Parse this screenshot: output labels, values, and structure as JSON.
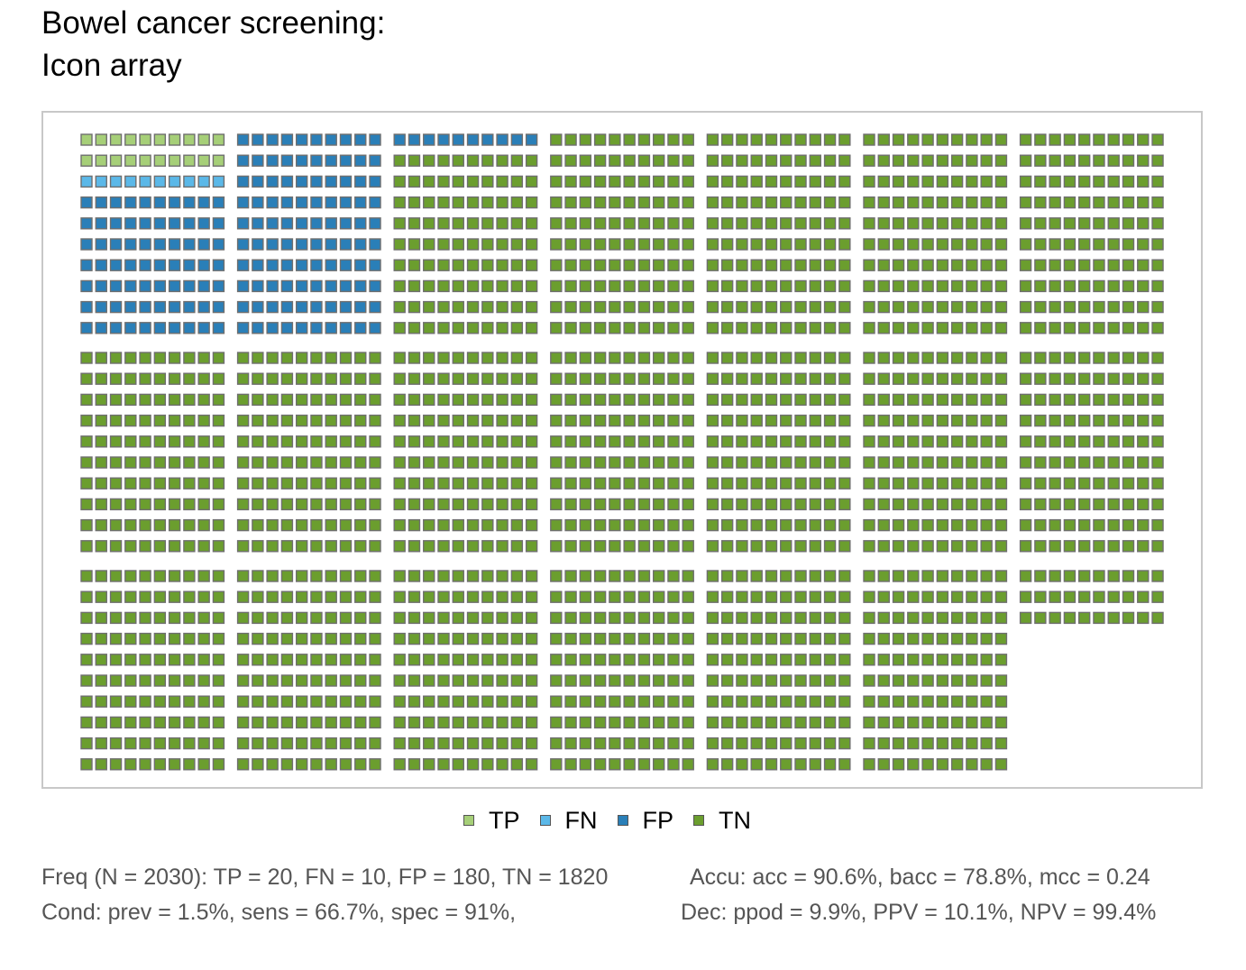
{
  "title": {
    "line1": "Bowel cancer screening:",
    "line2": "Icon array"
  },
  "chart_data": {
    "type": "icon_array",
    "total": 2030,
    "categories": [
      {
        "key": "TP",
        "label": "TP",
        "count": 20,
        "color": "#a6cf78"
      },
      {
        "key": "FN",
        "label": "FN",
        "count": 10,
        "color": "#5bb8e8"
      },
      {
        "key": "FP",
        "label": "FP",
        "count": 180,
        "color": "#2a7fb8"
      },
      {
        "key": "TN",
        "label": "TN",
        "count": 1820,
        "color": "#6b9e2e"
      }
    ],
    "grid": {
      "block_cols": 7,
      "block_rows": 3,
      "icons_per_block_row": 10,
      "icon_rows_per_block": 10
    },
    "legend_position": "bottom"
  },
  "legend": [
    {
      "label": "TP",
      "color": "#a6cf78"
    },
    {
      "label": "FN",
      "color": "#5bb8e8"
    },
    {
      "label": "FP",
      "color": "#2a7fb8"
    },
    {
      "label": "TN",
      "color": "#6b9e2e"
    }
  ],
  "summary": {
    "freq": "Freq (N = 2030):  TP = 20, FN = 10, FP = 180, TN = 1820",
    "cond": "Cond:  prev = 1.5%, sens = 66.7%, spec = 91%,",
    "accu": "Accu:  acc = 90.6%, bacc = 78.8%, mcc = 0.24",
    "dec": "Dec:  ppod = 9.9%, PPV = 10.1%, NPV = 99.4%"
  }
}
